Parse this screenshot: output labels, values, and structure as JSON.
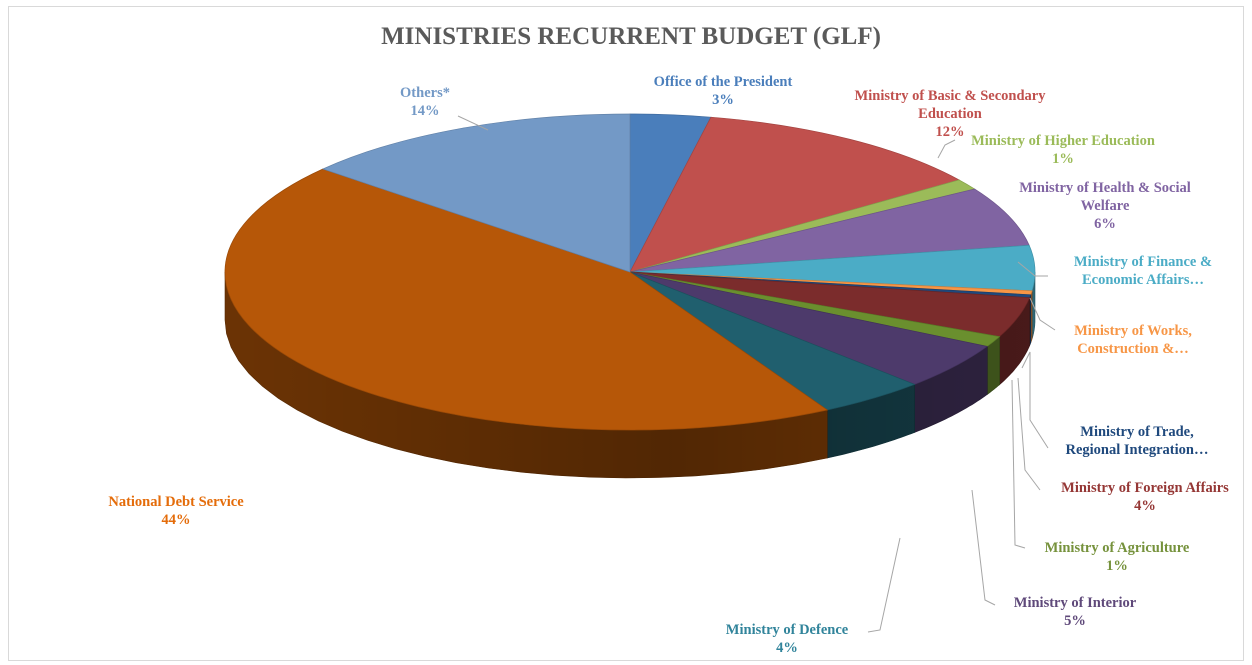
{
  "chart_data": {
    "type": "pie",
    "title": "MINISTRIES RECURRENT BUDGET (GLF)",
    "slices": [
      {
        "label_lines": [
          "Office of the President"
        ],
        "pct_label": "3%",
        "value": 3.2,
        "color": "#4a7ebb"
      },
      {
        "label_lines": [
          "Ministry of Basic & Secondary",
          "Education"
        ],
        "pct_label": "12%",
        "value": 11.9,
        "color": "#c0504d"
      },
      {
        "label_lines": [
          "Ministry of Higher Education"
        ],
        "pct_label": "1%",
        "value": 1.1,
        "color": "#9bbb59"
      },
      {
        "label_lines": [
          "Ministry of Health & Social",
          "Welfare"
        ],
        "pct_label": "6%",
        "value": 6.1,
        "color": "#8064a2"
      },
      {
        "label_lines": [
          "Ministry of Finance &",
          "Economic Affairs…"
        ],
        "pct_label": "",
        "value": 4.6,
        "color": "#4bacc6"
      },
      {
        "label_lines": [
          "Ministry of Works,",
          "Construction &…"
        ],
        "pct_label": "",
        "value": 0.4,
        "color": "#f79646"
      },
      {
        "label_lines": [
          "Ministry of Trade,",
          "Regional Integration…"
        ],
        "pct_label": "",
        "value": 0.3,
        "color": "#1f497d"
      },
      {
        "label_lines": [
          "Ministry of  Foreign Affairs"
        ],
        "pct_label": "4%",
        "value": 4.1,
        "color": "#7b2c2c"
      },
      {
        "label_lines": [
          "Ministry of  Agriculture"
        ],
        "pct_label": "1%",
        "value": 1.1,
        "color": "#6a8f2e"
      },
      {
        "label_lines": [
          "Ministry of Interior"
        ],
        "pct_label": "5%",
        "value": 4.8,
        "color": "#4d3a6b"
      },
      {
        "label_lines": [
          "Ministry of  Defence"
        ],
        "pct_label": "4%",
        "value": 4.3,
        "color": "#205f6e"
      },
      {
        "label_lines": [
          "National Debt Service"
        ],
        "pct_label": "44%",
        "value": 44.4,
        "color": "#b65708"
      },
      {
        "label_lines": [
          "Others*"
        ],
        "pct_label": "14%",
        "value": 13.7,
        "color": "#7399c6"
      }
    ],
    "label_colors": {
      "Office of the President": "#4a7ebb",
      "Ministry of Basic & Secondary": "#c0504d",
      "Ministry of Higher Education": "#9bbb59",
      "Ministry of Health & Social": "#8064a2",
      "Ministry of Finance &": "#4bacc6",
      "Ministry of Works,": "#f79646",
      "Ministry of Trade,": "#1f497d",
      "Ministry of  Foreign Affairs": "#953735",
      "Ministry of  Agriculture": "#76923c",
      "Ministry of Interior": "#5f497a",
      "Ministry of  Defence": "#31849b",
      "National Debt Service": "#e46c0a",
      "Others*": "#7399c6"
    },
    "style": "3d-pie",
    "legend": "none"
  }
}
